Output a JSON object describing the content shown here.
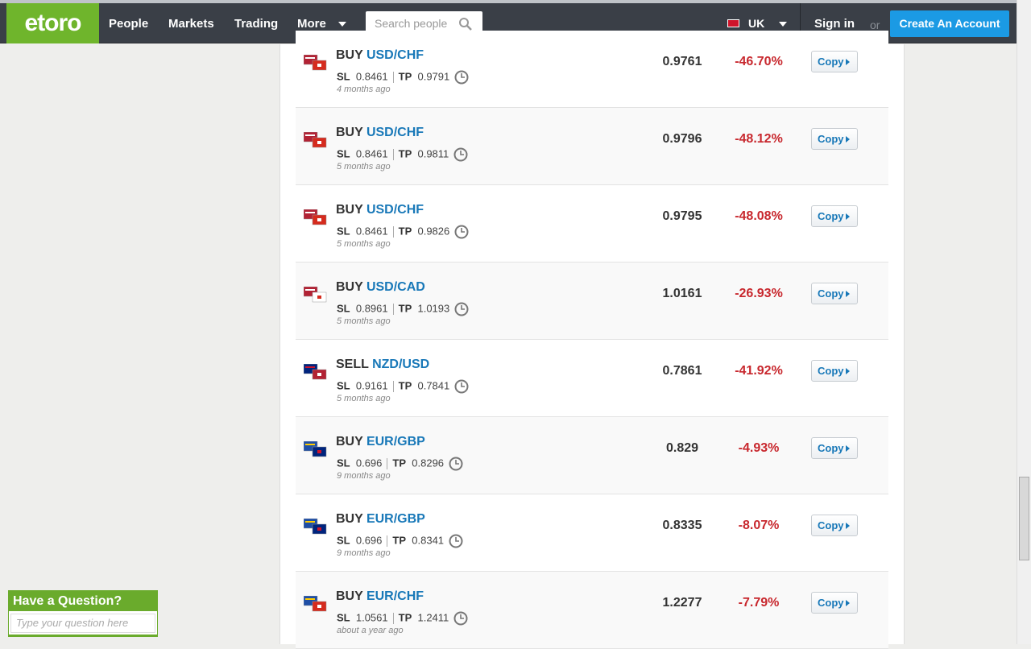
{
  "header": {
    "logo": "etoro",
    "nav": [
      "People",
      "Markets",
      "Trading",
      "More"
    ],
    "search_placeholder": "Search people",
    "country": "UK",
    "sign_in": "Sign in",
    "or": "or",
    "create_account": "Create An Account"
  },
  "trades": [
    {
      "action": "BUY",
      "pair": "USD/CHF",
      "sl_label": "SL",
      "sl": "0.8461",
      "tp_label": "TP",
      "tp": "0.9791",
      "time": "4 months ago",
      "rate": "0.9761",
      "change": "-46.70%",
      "button": "Copy"
    },
    {
      "action": "BUY",
      "pair": "USD/CHF",
      "sl_label": "SL",
      "sl": "0.8461",
      "tp_label": "TP",
      "tp": "0.9811",
      "time": "5 months ago",
      "rate": "0.9796",
      "change": "-48.12%",
      "button": "Copy"
    },
    {
      "action": "BUY",
      "pair": "USD/CHF",
      "sl_label": "SL",
      "sl": "0.8461",
      "tp_label": "TP",
      "tp": "0.9826",
      "time": "5 months ago",
      "rate": "0.9795",
      "change": "-48.08%",
      "button": "Copy"
    },
    {
      "action": "BUY",
      "pair": "USD/CAD",
      "sl_label": "SL",
      "sl": "0.8961",
      "tp_label": "TP",
      "tp": "1.0193",
      "time": "5 months ago",
      "rate": "1.0161",
      "change": "-26.93%",
      "button": "Copy"
    },
    {
      "action": "SELL",
      "pair": "NZD/USD",
      "sl_label": "SL",
      "sl": "0.9161",
      "tp_label": "TP",
      "tp": "0.7841",
      "time": "5 months ago",
      "rate": "0.7861",
      "change": "-41.92%",
      "button": "Copy"
    },
    {
      "action": "BUY",
      "pair": "EUR/GBP",
      "sl_label": "SL",
      "sl": "0.696",
      "tp_label": "TP",
      "tp": "0.8296",
      "time": "9 months ago",
      "rate": "0.829",
      "change": "-4.93%",
      "button": "Copy"
    },
    {
      "action": "BUY",
      "pair": "EUR/GBP",
      "sl_label": "SL",
      "sl": "0.696",
      "tp_label": "TP",
      "tp": "0.8341",
      "time": "9 months ago",
      "rate": "0.8335",
      "change": "-8.07%",
      "button": "Copy"
    },
    {
      "action": "BUY",
      "pair": "EUR/CHF",
      "sl_label": "SL",
      "sl": "1.0561",
      "tp_label": "TP",
      "tp": "1.2411",
      "time": "about a year ago",
      "rate": "1.2277",
      "change": "-7.79%",
      "button": "Copy"
    }
  ],
  "help": {
    "title": "Have a Question?",
    "placeholder": "Type your question here"
  }
}
